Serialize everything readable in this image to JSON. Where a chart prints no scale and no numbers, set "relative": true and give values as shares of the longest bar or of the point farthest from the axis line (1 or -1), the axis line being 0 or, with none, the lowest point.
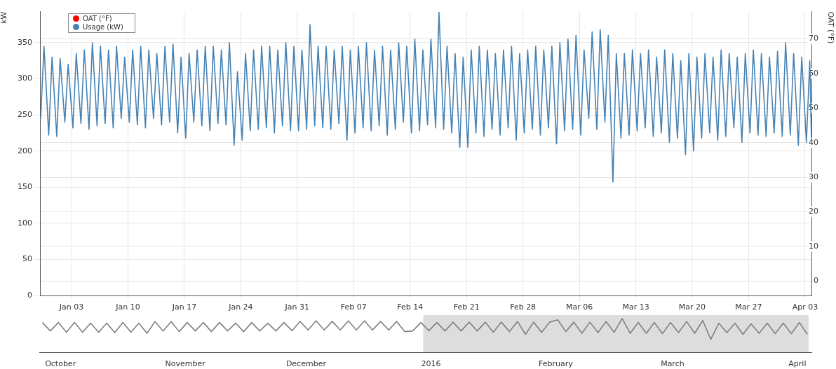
{
  "chart_data": [
    {
      "type": "line",
      "ylabel": "kW",
      "y2label": "OAT (°F)",
      "legend": "top left",
      "grid": true,
      "marker": "none",
      "line_style": "solid",
      "xlim": [
        "2015-12-30T02:00",
        "2016-04-03T19:00"
      ],
      "xticks": [
        {
          "value": "2016-01-03",
          "label": "Jan 03"
        },
        {
          "value": "2016-01-10",
          "label": "Jan 10"
        },
        {
          "value": "2016-01-17",
          "label": "Jan 17"
        },
        {
          "value": "2016-01-24",
          "label": "Jan 24"
        },
        {
          "value": "2016-01-31",
          "label": "Jan 31"
        },
        {
          "value": "2016-02-07",
          "label": "Feb 07"
        },
        {
          "value": "2016-02-14",
          "label": "Feb 14"
        },
        {
          "value": "2016-02-21",
          "label": "Feb 21"
        },
        {
          "value": "2016-02-28",
          "label": "Feb 28"
        },
        {
          "value": "2016-03-06",
          "label": "Mar 06"
        },
        {
          "value": "2016-03-13",
          "label": "Mar 13"
        },
        {
          "value": "2016-03-20",
          "label": "Mar 20"
        },
        {
          "value": "2016-03-27",
          "label": "Mar 27"
        },
        {
          "value": "2016-04-03",
          "label": "Apr 03"
        }
      ],
      "ylim": [
        0,
        393
      ],
      "yticks": [
        0,
        50,
        100,
        150,
        200,
        250,
        300,
        350
      ],
      "y2lim": [
        -4.2,
        77.9
      ],
      "y2ticks": [
        0,
        10,
        20,
        30,
        40,
        50,
        60,
        70
      ],
      "x": [
        "2015-12-30T04:00",
        "2015-12-30T14:00",
        "2015-12-31T04:00",
        "2015-12-31T14:00",
        "2016-01-01T04:00",
        "2016-01-01T14:00",
        "2016-01-02T04:00",
        "2016-01-02T14:00",
        "2016-01-03T04:00",
        "2016-01-03T14:00",
        "2016-01-04T04:00",
        "2016-01-04T14:00",
        "2016-01-05T04:00",
        "2016-01-05T14:00",
        "2016-01-06T04:00",
        "2016-01-06T14:00",
        "2016-01-07T04:00",
        "2016-01-07T14:00",
        "2016-01-08T04:00",
        "2016-01-08T14:00",
        "2016-01-09T04:00",
        "2016-01-09T14:00",
        "2016-01-10T04:00",
        "2016-01-10T14:00",
        "2016-01-11T04:00",
        "2016-01-11T14:00",
        "2016-01-12T04:00",
        "2016-01-12T14:00",
        "2016-01-13T04:00",
        "2016-01-13T14:00",
        "2016-01-14T04:00",
        "2016-01-14T14:00",
        "2016-01-15T04:00",
        "2016-01-15T14:00",
        "2016-01-16T04:00",
        "2016-01-16T14:00",
        "2016-01-17T04:00",
        "2016-01-17T14:00",
        "2016-01-18T04:00",
        "2016-01-18T14:00",
        "2016-01-19T04:00",
        "2016-01-19T14:00",
        "2016-01-20T04:00",
        "2016-01-20T14:00",
        "2016-01-21T04:00",
        "2016-01-21T14:00",
        "2016-01-22T04:00",
        "2016-01-22T14:00",
        "2016-01-23T04:00",
        "2016-01-23T14:00",
        "2016-01-24T04:00",
        "2016-01-24T14:00",
        "2016-01-25T04:00",
        "2016-01-25T14:00",
        "2016-01-26T04:00",
        "2016-01-26T14:00",
        "2016-01-27T04:00",
        "2016-01-27T14:00",
        "2016-01-28T04:00",
        "2016-01-28T14:00",
        "2016-01-29T04:00",
        "2016-01-29T14:00",
        "2016-01-30T04:00",
        "2016-01-30T14:00",
        "2016-01-31T04:00",
        "2016-01-31T14:00",
        "2016-02-01T04:00",
        "2016-02-01T14:00",
        "2016-02-02T04:00",
        "2016-02-02T14:00",
        "2016-02-03T04:00",
        "2016-02-03T14:00",
        "2016-02-04T04:00",
        "2016-02-04T14:00",
        "2016-02-05T04:00",
        "2016-02-05T14:00",
        "2016-02-06T04:00",
        "2016-02-06T14:00",
        "2016-02-07T04:00",
        "2016-02-07T14:00",
        "2016-02-08T04:00",
        "2016-02-08T14:00",
        "2016-02-09T04:00",
        "2016-02-09T14:00",
        "2016-02-10T04:00",
        "2016-02-10T14:00",
        "2016-02-11T04:00",
        "2016-02-11T14:00",
        "2016-02-12T04:00",
        "2016-02-12T14:00",
        "2016-02-13T04:00",
        "2016-02-13T14:00",
        "2016-02-14T04:00",
        "2016-02-14T14:00",
        "2016-02-15T04:00",
        "2016-02-15T14:00",
        "2016-02-16T04:00",
        "2016-02-16T14:00",
        "2016-02-17T04:00",
        "2016-02-17T14:00",
        "2016-02-18T04:00",
        "2016-02-18T14:00",
        "2016-02-19T04:00",
        "2016-02-19T14:00",
        "2016-02-20T04:00",
        "2016-02-20T14:00",
        "2016-02-21T04:00",
        "2016-02-21T14:00",
        "2016-02-22T04:00",
        "2016-02-22T14:00",
        "2016-02-23T04:00",
        "2016-02-23T14:00",
        "2016-02-24T04:00",
        "2016-02-24T14:00",
        "2016-02-25T04:00",
        "2016-02-25T14:00",
        "2016-02-26T04:00",
        "2016-02-26T14:00",
        "2016-02-27T04:00",
        "2016-02-27T14:00",
        "2016-02-28T04:00",
        "2016-02-28T14:00",
        "2016-02-29T04:00",
        "2016-02-29T14:00",
        "2016-03-01T04:00",
        "2016-03-01T14:00",
        "2016-03-02T04:00",
        "2016-03-02T14:00",
        "2016-03-03T04:00",
        "2016-03-03T14:00",
        "2016-03-04T04:00",
        "2016-03-04T14:00",
        "2016-03-05T04:00",
        "2016-03-05T14:00",
        "2016-03-06T04:00",
        "2016-03-06T14:00",
        "2016-03-07T04:00",
        "2016-03-07T14:00",
        "2016-03-08T04:00",
        "2016-03-08T14:00",
        "2016-03-09T04:00",
        "2016-03-09T14:00",
        "2016-03-10T04:00",
        "2016-03-10T14:00",
        "2016-03-11T04:00",
        "2016-03-11T14:00",
        "2016-03-12T04:00",
        "2016-03-12T14:00",
        "2016-03-13T04:00",
        "2016-03-13T14:00",
        "2016-03-14T04:00",
        "2016-03-14T14:00",
        "2016-03-15T04:00",
        "2016-03-15T14:00",
        "2016-03-16T04:00",
        "2016-03-16T14:00",
        "2016-03-17T04:00",
        "2016-03-17T14:00",
        "2016-03-18T04:00",
        "2016-03-18T14:00",
        "2016-03-19T04:00",
        "2016-03-19T14:00",
        "2016-03-20T04:00",
        "2016-03-20T14:00",
        "2016-03-21T04:00",
        "2016-03-21T14:00",
        "2016-03-22T04:00",
        "2016-03-22T14:00",
        "2016-03-23T04:00",
        "2016-03-23T14:00",
        "2016-03-24T04:00",
        "2016-03-24T14:00",
        "2016-03-25T04:00",
        "2016-03-25T14:00",
        "2016-03-26T04:00",
        "2016-03-26T14:00",
        "2016-03-27T04:00",
        "2016-03-27T14:00",
        "2016-03-28T04:00",
        "2016-03-28T14:00",
        "2016-03-29T04:00",
        "2016-03-29T14:00",
        "2016-03-30T04:00",
        "2016-03-30T14:00",
        "2016-03-31T04:00",
        "2016-03-31T14:00",
        "2016-04-01T04:00",
        "2016-04-01T14:00",
        "2016-04-02T04:00",
        "2016-04-02T14:00",
        "2016-04-03T04:00",
        "2016-04-03T14:00",
        "2016-04-03T19:00"
      ],
      "series": [
        {
          "name": "OAT (°F)",
          "color": "#ff0000",
          "values": [
            null,
            null,
            null,
            null,
            null,
            null,
            null,
            null,
            null,
            null,
            null,
            null,
            null,
            null,
            null,
            null,
            null,
            null,
            null,
            null,
            null,
            null,
            null,
            null,
            null,
            null,
            null,
            null,
            null,
            null,
            null,
            null,
            null,
            null,
            null,
            null,
            null,
            null,
            null,
            null,
            null,
            null,
            null,
            null,
            null,
            null,
            null,
            null,
            null,
            null,
            null,
            null,
            null,
            null,
            null,
            null,
            null,
            null,
            null,
            null,
            null,
            null,
            null,
            null,
            null,
            null,
            null,
            null,
            null,
            null,
            null,
            null,
            null,
            null,
            null,
            null,
            null,
            null,
            null,
            null,
            null,
            null,
            null,
            null,
            null,
            null,
            null,
            null,
            null,
            null,
            null,
            null,
            null,
            null,
            null,
            null,
            null,
            null,
            null,
            null,
            null,
            null,
            null,
            null,
            null,
            null,
            null,
            null,
            null,
            null,
            null,
            null,
            null,
            null,
            null,
            null,
            null,
            null,
            null,
            null,
            null,
            null,
            null,
            null,
            null,
            null,
            null,
            null,
            null,
            null,
            null,
            null,
            null,
            null,
            null,
            null,
            null,
            null,
            null,
            null,
            null,
            null,
            null,
            null,
            null,
            null,
            null,
            null,
            null,
            null,
            null,
            null,
            null,
            null,
            null,
            null,
            null,
            null,
            null,
            null,
            null,
            null,
            null,
            null,
            null,
            null,
            null,
            null,
            null,
            null,
            null,
            null,
            null,
            null,
            null,
            null,
            null,
            null,
            null,
            null,
            null,
            null,
            null,
            null,
            null,
            null,
            null,
            null,
            null,
            null,
            null,
            null,
            null
          ]
        },
        {
          "name": "Usage (kW)",
          "color": "#4682b4",
          "values": [
            245,
            345,
            222,
            330,
            220,
            328,
            240,
            320,
            232,
            335,
            238,
            340,
            230,
            350,
            235,
            345,
            238,
            340,
            232,
            345,
            245,
            330,
            240,
            340,
            236,
            345,
            232,
            340,
            245,
            335,
            236,
            345,
            240,
            348,
            225,
            330,
            218,
            335,
            240,
            340,
            235,
            345,
            228,
            345,
            238,
            340,
            236,
            350,
            208,
            310,
            215,
            335,
            228,
            340,
            230,
            345,
            232,
            345,
            225,
            340,
            235,
            350,
            228,
            345,
            228,
            340,
            230,
            375,
            235,
            345,
            232,
            345,
            230,
            340,
            238,
            345,
            215,
            340,
            225,
            345,
            232,
            350,
            228,
            340,
            235,
            345,
            222,
            340,
            230,
            350,
            240,
            345,
            225,
            355,
            228,
            340,
            236,
            355,
            232,
            392,
            230,
            345,
            225,
            335,
            205,
            330,
            205,
            340,
            225,
            345,
            220,
            340,
            230,
            335,
            222,
            340,
            232,
            345,
            215,
            335,
            225,
            340,
            230,
            345,
            222,
            340,
            232,
            345,
            210,
            350,
            228,
            355,
            230,
            360,
            222,
            340,
            245,
            365,
            230,
            368,
            240,
            360,
            157,
            335,
            218,
            335,
            222,
            340,
            228,
            335,
            232,
            340,
            220,
            330,
            225,
            340,
            212,
            335,
            218,
            325,
            195,
            335,
            200,
            330,
            218,
            335,
            225,
            330,
            215,
            340,
            220,
            335,
            232,
            330,
            212,
            335,
            225,
            340,
            222,
            335,
            220,
            330,
            225,
            338,
            220,
            350,
            222,
            335,
            208,
            330,
            212,
            325,
            215
          ]
        }
      ]
    },
    {
      "type": "line",
      "relative": true,
      "marker": "none",
      "xlim": [
        "2015-09-25T18:00",
        "2016-04-04T12:00"
      ],
      "xticks": [
        {
          "value": "2015-10-01",
          "label": "October"
        },
        {
          "value": "2015-11-01",
          "label": "November"
        },
        {
          "value": "2015-12-01",
          "label": "December"
        },
        {
          "value": "2016-01-01",
          "label": "2016"
        },
        {
          "value": "2016-02-01",
          "label": "February"
        },
        {
          "value": "2016-03-01",
          "label": "March"
        },
        {
          "value": "2016-04-01",
          "label": "April"
        }
      ],
      "bands": [
        {
          "axis": "x",
          "from": "2015-12-30T02:00",
          "to": "2016-04-03T19:00",
          "color": "#dddddd"
        }
      ],
      "x": [
        "2015-09-26T12:00",
        "2015-09-28T12:00",
        "2015-09-30T12:00",
        "2015-10-02T12:00",
        "2015-10-04T12:00",
        "2015-10-06T12:00",
        "2015-10-08T12:00",
        "2015-10-10T12:00",
        "2015-10-12T12:00",
        "2015-10-14T12:00",
        "2015-10-16T12:00",
        "2015-10-18T12:00",
        "2015-10-20T12:00",
        "2015-10-22T12:00",
        "2015-10-24T12:00",
        "2015-10-26T12:00",
        "2015-10-28T12:00",
        "2015-10-30T12:00",
        "2015-11-01T12:00",
        "2015-11-03T12:00",
        "2015-11-05T12:00",
        "2015-11-07T12:00",
        "2015-11-09T12:00",
        "2015-11-11T12:00",
        "2015-11-13T12:00",
        "2015-11-15T12:00",
        "2015-11-17T12:00",
        "2015-11-19T12:00",
        "2015-11-21T12:00",
        "2015-11-23T12:00",
        "2015-11-25T12:00",
        "2015-11-27T12:00",
        "2015-11-29T12:00",
        "2015-12-01T12:00",
        "2015-12-03T12:00",
        "2015-12-05T12:00",
        "2015-12-07T12:00",
        "2015-12-09T12:00",
        "2015-12-11T12:00",
        "2015-12-13T12:00",
        "2015-12-15T12:00",
        "2015-12-17T12:00",
        "2015-12-19T12:00",
        "2015-12-21T12:00",
        "2015-12-23T12:00",
        "2015-12-25T12:00",
        "2015-12-27T12:00",
        "2015-12-29T12:00",
        "2015-12-31T12:00",
        "2016-01-02T12:00",
        "2016-01-04T12:00",
        "2016-01-06T12:00",
        "2016-01-08T12:00",
        "2016-01-10T12:00",
        "2016-01-12T12:00",
        "2016-01-14T12:00",
        "2016-01-16T12:00",
        "2016-01-18T12:00",
        "2016-01-20T12:00",
        "2016-01-22T12:00",
        "2016-01-24T12:00",
        "2016-01-26T12:00",
        "2016-01-28T12:00",
        "2016-01-30T12:00",
        "2016-02-01T12:00",
        "2016-02-03T12:00",
        "2016-02-05T12:00",
        "2016-02-07T12:00",
        "2016-02-09T12:00",
        "2016-02-11T12:00",
        "2016-02-13T12:00",
        "2016-02-15T12:00",
        "2016-02-17T12:00",
        "2016-02-19T12:00",
        "2016-02-21T12:00",
        "2016-02-23T12:00",
        "2016-02-25T12:00",
        "2016-02-27T12:00",
        "2016-02-29T12:00",
        "2016-03-02T12:00",
        "2016-03-04T12:00",
        "2016-03-06T12:00",
        "2016-03-08T12:00",
        "2016-03-10T12:00",
        "2016-03-12T12:00",
        "2016-03-14T12:00",
        "2016-03-16T12:00",
        "2016-03-18T12:00",
        "2016-03-20T12:00",
        "2016-03-22T12:00",
        "2016-03-24T12:00",
        "2016-03-26T12:00",
        "2016-03-28T12:00",
        "2016-03-30T12:00",
        "2016-04-01T12:00",
        "2016-04-03T12:00"
      ],
      "series": [
        {
          "color": "#808080",
          "values": [
            0.88,
            0.63,
            0.88,
            0.59,
            0.88,
            0.59,
            0.86,
            0.59,
            0.86,
            0.58,
            0.88,
            0.59,
            0.86,
            0.56,
            0.91,
            0.63,
            0.91,
            0.61,
            0.88,
            0.63,
            0.88,
            0.61,
            0.88,
            0.63,
            0.86,
            0.61,
            0.88,
            0.63,
            0.86,
            0.63,
            0.88,
            0.64,
            0.91,
            0.66,
            0.93,
            0.66,
            0.91,
            0.66,
            0.93,
            0.66,
            0.93,
            0.66,
            0.91,
            0.66,
            0.91,
            0.61,
            0.63,
            0.88,
            0.64,
            0.88,
            0.63,
            0.89,
            0.63,
            0.89,
            0.63,
            0.89,
            0.59,
            0.89,
            0.61,
            0.91,
            0.53,
            0.89,
            0.59,
            0.89,
            0.96,
            0.61,
            0.89,
            0.56,
            0.89,
            0.58,
            0.91,
            0.59,
            1,
            0.56,
            0.88,
            0.56,
            0.88,
            0.55,
            0.88,
            0.58,
            0.91,
            0.56,
            0.94,
            0.38,
            0.86,
            0.58,
            0.86,
            0.53,
            0.84,
            0.56,
            0.86,
            0.55,
            0.86,
            0.55,
            0.88,
            0.53
          ]
        }
      ]
    }
  ]
}
